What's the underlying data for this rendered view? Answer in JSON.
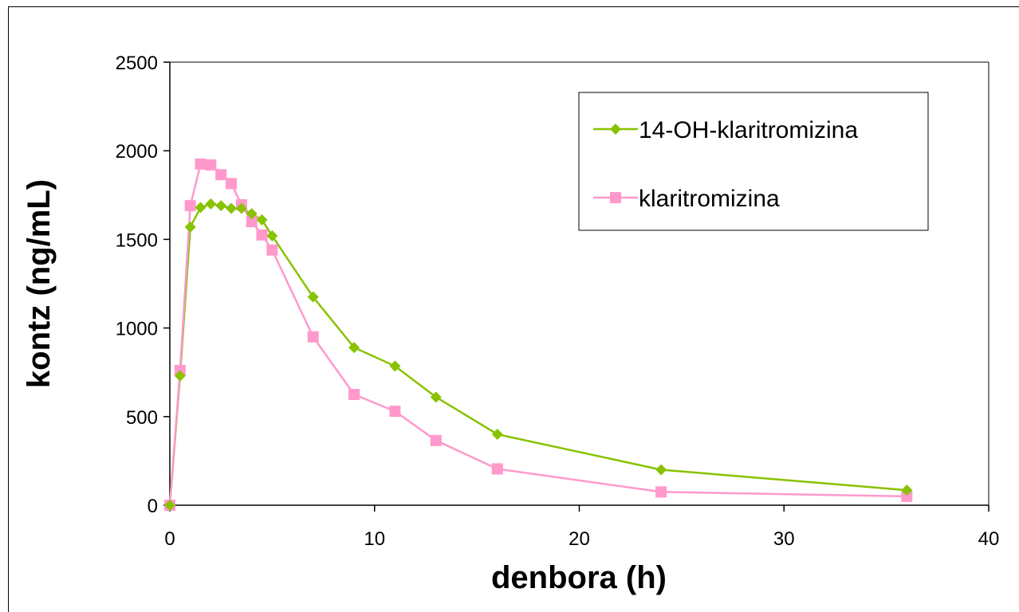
{
  "chart_data": {
    "type": "line",
    "xlabel": "denbora (h)",
    "ylabel": "kontz (ng/mL)",
    "xlim": [
      0,
      40
    ],
    "ylim": [
      0,
      2500
    ],
    "xticks": [
      0,
      10,
      20,
      30,
      40
    ],
    "yticks": [
      0,
      500,
      1000,
      1500,
      2000,
      2500
    ],
    "grid": false,
    "legend_position": "top-right",
    "series": [
      {
        "name": "14-OH-klaritromizina",
        "color": "#88c200",
        "marker": "diamond",
        "x": [
          0,
          0.5,
          1,
          1.5,
          2,
          2.5,
          3,
          3.5,
          4,
          4.5,
          5,
          7,
          9,
          11,
          13,
          16,
          24,
          36
        ],
        "y": [
          0,
          730,
          1570,
          1680,
          1700,
          1690,
          1675,
          1675,
          1645,
          1610,
          1520,
          1175,
          890,
          785,
          610,
          400,
          200,
          85
        ]
      },
      {
        "name": "klaritromizina",
        "color": "#ff99cc",
        "marker": "square",
        "x": [
          0,
          0.5,
          1,
          1.5,
          2,
          2.5,
          3,
          3.5,
          4,
          4.5,
          5,
          7,
          9,
          11,
          13,
          16,
          24,
          36
        ],
        "y": [
          0,
          760,
          1690,
          1925,
          1920,
          1865,
          1815,
          1695,
          1600,
          1525,
          1440,
          950,
          625,
          530,
          365,
          205,
          75,
          50
        ]
      }
    ]
  }
}
